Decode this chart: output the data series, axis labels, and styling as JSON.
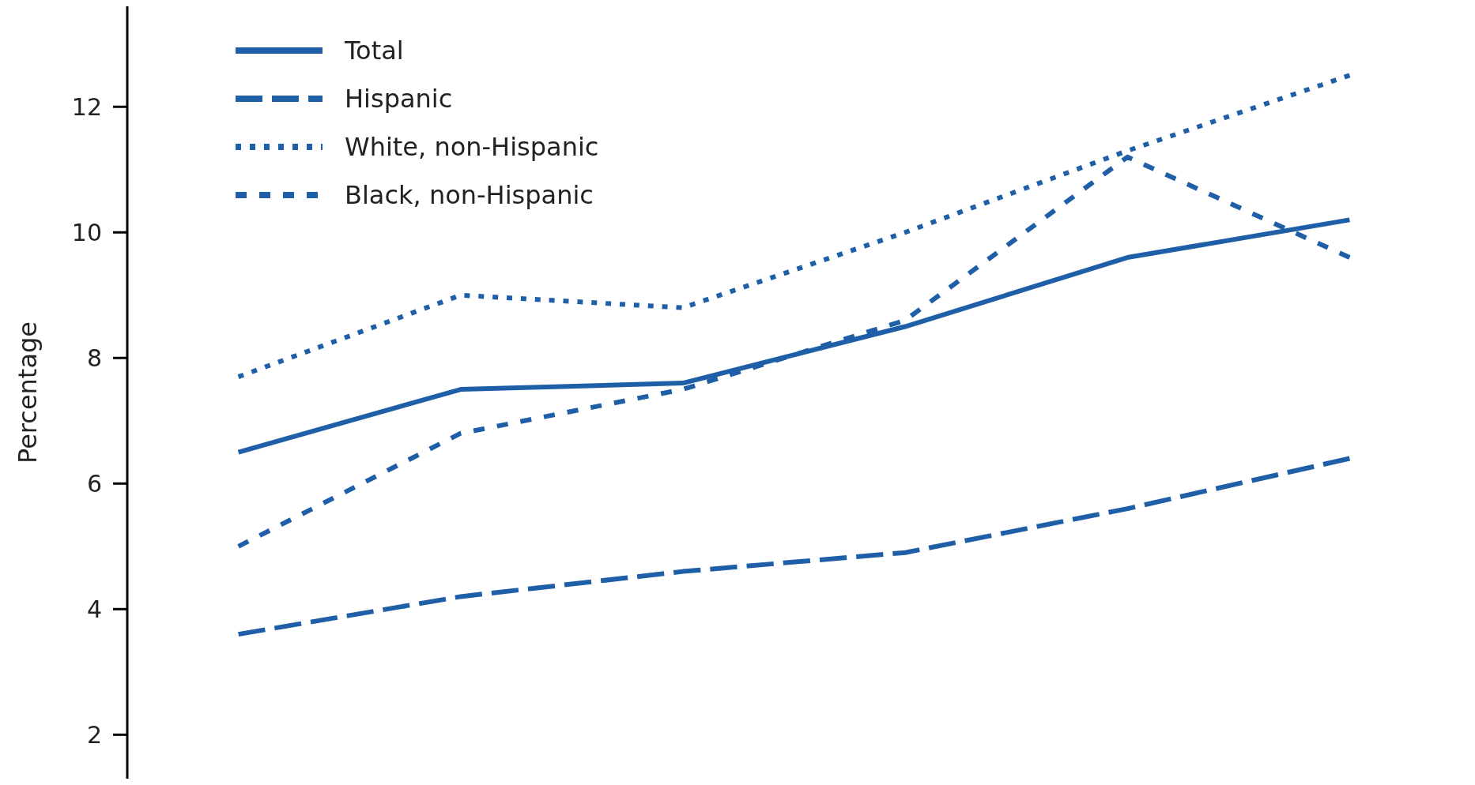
{
  "chart_data": {
    "type": "line",
    "ylabel": "Percentage",
    "categories": [
      null,
      null,
      null,
      null,
      null,
      null
    ],
    "ylim": [
      1.3,
      13.6
    ],
    "yticks": [
      2,
      4,
      6,
      8,
      10,
      12
    ],
    "grid": false,
    "legend": "top left",
    "tick_labels": "y",
    "series": [
      {
        "name": "Total",
        "color": "#1f5fa8",
        "line_style": "solid",
        "values": [
          6.5,
          7.5,
          7.6,
          8.5,
          9.6,
          10.2
        ]
      },
      {
        "name": "Hispanic",
        "color": "#1f5fa8",
        "line_style": "dashed",
        "values": [
          3.6,
          4.2,
          4.6,
          4.9,
          5.6,
          6.4
        ]
      },
      {
        "name": "White, non-Hispanic",
        "color": "#1f5fa8",
        "line_style": "dotted",
        "values": [
          7.7,
          9.0,
          8.8,
          10.0,
          11.3,
          12.5
        ]
      },
      {
        "name": "Black, non-Hispanic",
        "color": "#1f5fa8",
        "line_style": "dashed",
        "values": [
          5.0,
          6.8,
          7.5,
          8.6,
          11.2,
          9.6
        ]
      }
    ]
  }
}
